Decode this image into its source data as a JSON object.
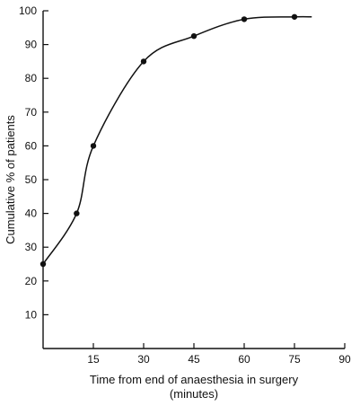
{
  "chart_data": {
    "type": "line",
    "title": "",
    "xlabel_line1": "Time from end of anaesthesia in surgery",
    "xlabel_line2": "(minutes)",
    "ylabel": "Cumulative % of patients",
    "xlim": [
      0,
      90
    ],
    "ylim": [
      0,
      100
    ],
    "x_ticks": [
      15,
      30,
      45,
      60,
      75,
      90
    ],
    "y_ticks": [
      10,
      20,
      30,
      40,
      50,
      60,
      70,
      80,
      90,
      100
    ],
    "grid": false,
    "legend": "none",
    "series": [
      {
        "x": [
          0,
          10,
          15,
          30,
          45,
          60,
          75
        ],
        "y": [
          25,
          40,
          60,
          85,
          92.5,
          97.5,
          98.2
        ]
      }
    ],
    "curve_end": {
      "x": 80,
      "y": 98.2
    },
    "color": "#111111"
  }
}
